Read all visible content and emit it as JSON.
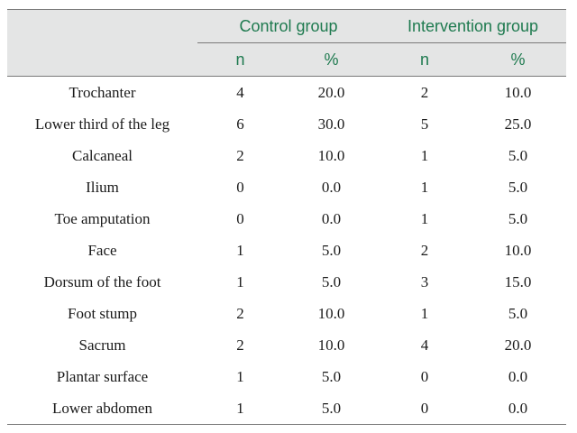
{
  "header": {
    "groups": [
      "Control group",
      "Intervention group"
    ],
    "subheaders": [
      "n",
      "%",
      "n",
      "%"
    ]
  },
  "rows": [
    {
      "label": "Trochanter",
      "c_n": "4",
      "c_pct": "20.0",
      "i_n": "2",
      "i_pct": "10.0"
    },
    {
      "label": "Lower third of the leg",
      "c_n": "6",
      "c_pct": "30.0",
      "i_n": "5",
      "i_pct": "25.0"
    },
    {
      "label": "Calcaneal",
      "c_n": "2",
      "c_pct": "10.0",
      "i_n": "1",
      "i_pct": "5.0"
    },
    {
      "label": "Ilium",
      "c_n": "0",
      "c_pct": "0.0",
      "i_n": "1",
      "i_pct": "5.0"
    },
    {
      "label": "Toe amputation",
      "c_n": "0",
      "c_pct": "0.0",
      "i_n": "1",
      "i_pct": "5.0"
    },
    {
      "label": "Face",
      "c_n": "1",
      "c_pct": "5.0",
      "i_n": "2",
      "i_pct": "10.0"
    },
    {
      "label": "Dorsum of the foot",
      "c_n": "1",
      "c_pct": "5.0",
      "i_n": "3",
      "i_pct": "15.0"
    },
    {
      "label": "Foot stump",
      "c_n": "2",
      "c_pct": "10.0",
      "i_n": "1",
      "i_pct": "5.0"
    },
    {
      "label": "Sacrum",
      "c_n": "2",
      "c_pct": "10.0",
      "i_n": "4",
      "i_pct": "20.0"
    },
    {
      "label": "Plantar surface",
      "c_n": "1",
      "c_pct": "5.0",
      "i_n": "0",
      "i_pct": "0.0"
    },
    {
      "label": "Lower abdomen",
      "c_n": "1",
      "c_pct": "5.0",
      "i_n": "0",
      "i_pct": "0.0"
    }
  ]
}
